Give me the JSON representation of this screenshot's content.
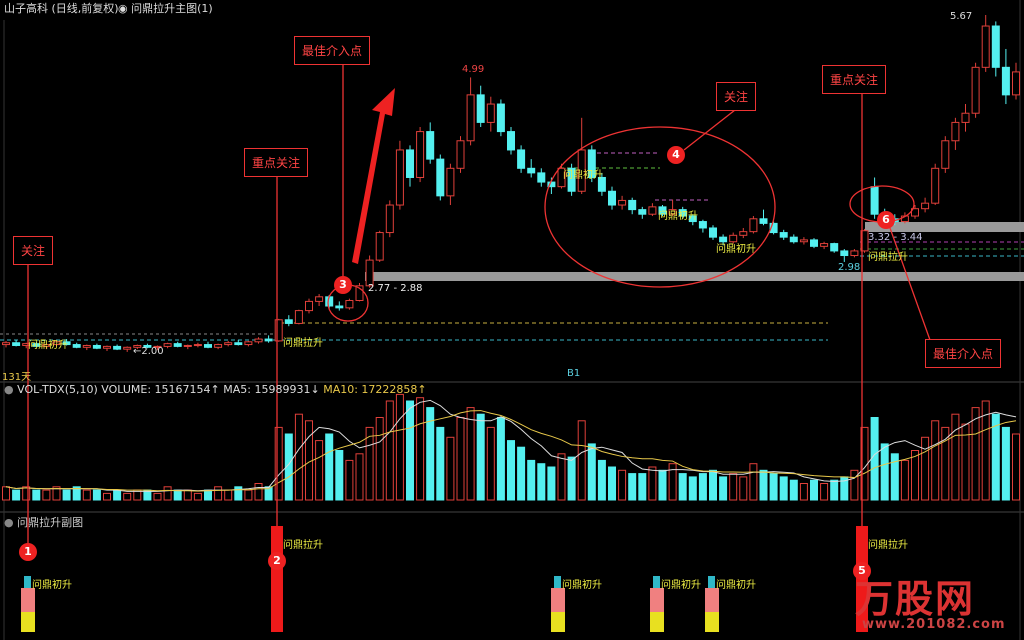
{
  "header": {
    "title": "山子高科 (日线,前复权)",
    "indicator": "问鼎拉升主图(1)"
  },
  "volume_panel": {
    "name": "VOL-TDX(5,10)",
    "volume": "VOLUME: 15167154↑",
    "ma5": "MA5: 15989931↓",
    "ma10": "MA10: 17222858↑"
  },
  "sub_panel": {
    "title": "问鼎拉升副图"
  },
  "labels": {
    "high1": "4.99",
    "high2": "5.67",
    "low1": "2.98",
    "low0": "←2.00",
    "days": "131天",
    "zone1": "2.77 - 2.88",
    "zone2": "3.32 - 3.44",
    "b1": "B1"
  },
  "annotations": {
    "a1": "关注",
    "a2": "重点关注",
    "a3": "最佳介入点",
    "a4": "关注",
    "a5": "重点关注",
    "a6": "最佳介入点",
    "n1": "1",
    "n2": "2",
    "n3": "3",
    "n4": "4",
    "n5": "5",
    "n6": "6"
  },
  "signals": {
    "chu": "问鼎初升",
    "la": "问鼎拉升"
  },
  "logo": {
    "name": "万股网",
    "url": "www.201082.com"
  },
  "colors": {
    "up": "#e0403a",
    "down": "#54f0f0",
    "ma5": "#dddddd",
    "ma10": "#e8c84a",
    "annotation": "#ee3333"
  },
  "chart_data": {
    "type": "candlestick",
    "ylim": [
      2.0,
      5.67
    ],
    "fields": [
      "open",
      "high",
      "low",
      "close",
      "volume_millions"
    ],
    "candles": [
      [
        2.08,
        2.12,
        2.05,
        2.1,
        4
      ],
      [
        2.1,
        2.13,
        2.06,
        2.07,
        3
      ],
      [
        2.07,
        2.1,
        2.04,
        2.09,
        4
      ],
      [
        2.09,
        2.11,
        2.05,
        2.06,
        3
      ],
      [
        2.06,
        2.09,
        2.03,
        2.08,
        3
      ],
      [
        2.08,
        2.12,
        2.06,
        2.11,
        4
      ],
      [
        2.11,
        2.14,
        2.07,
        2.08,
        3
      ],
      [
        2.08,
        2.1,
        2.04,
        2.05,
        4
      ],
      [
        2.05,
        2.08,
        2.02,
        2.07,
        3
      ],
      [
        2.07,
        2.09,
        2.03,
        2.04,
        3
      ],
      [
        2.04,
        2.07,
        2.01,
        2.06,
        2
      ],
      [
        2.06,
        2.08,
        2.02,
        2.03,
        3
      ],
      [
        2.03,
        2.06,
        2.0,
        2.05,
        2
      ],
      [
        2.05,
        2.08,
        2.03,
        2.07,
        3
      ],
      [
        2.07,
        2.09,
        2.04,
        2.05,
        3
      ],
      [
        2.05,
        2.07,
        2.02,
        2.06,
        2
      ],
      [
        2.06,
        2.1,
        2.04,
        2.09,
        4
      ],
      [
        2.09,
        2.11,
        2.05,
        2.06,
        3
      ],
      [
        2.06,
        2.08,
        2.03,
        2.07,
        3
      ],
      [
        2.07,
        2.1,
        2.05,
        2.08,
        2
      ],
      [
        2.08,
        2.11,
        2.04,
        2.05,
        3
      ],
      [
        2.05,
        2.09,
        2.03,
        2.08,
        4
      ],
      [
        2.08,
        2.12,
        2.06,
        2.1,
        3
      ],
      [
        2.1,
        2.13,
        2.07,
        2.08,
        4
      ],
      [
        2.08,
        2.12,
        2.06,
        2.11,
        3
      ],
      [
        2.11,
        2.16,
        2.09,
        2.14,
        5
      ],
      [
        2.14,
        2.18,
        2.1,
        2.12,
        4
      ],
      [
        2.12,
        2.36,
        2.11,
        2.35,
        22
      ],
      [
        2.35,
        2.4,
        2.28,
        2.31,
        20
      ],
      [
        2.31,
        2.46,
        2.3,
        2.45,
        26
      ],
      [
        2.45,
        2.58,
        2.42,
        2.55,
        24
      ],
      [
        2.55,
        2.63,
        2.5,
        2.6,
        18
      ],
      [
        2.6,
        2.62,
        2.47,
        2.5,
        20
      ],
      [
        2.5,
        2.55,
        2.45,
        2.48,
        15
      ],
      [
        2.48,
        2.58,
        2.46,
        2.56,
        12
      ],
      [
        2.56,
        2.75,
        2.55,
        2.72,
        14
      ],
      [
        2.72,
        3.05,
        2.7,
        3.0,
        22
      ],
      [
        3.0,
        3.32,
        2.98,
        3.3,
        25
      ],
      [
        3.3,
        3.65,
        3.25,
        3.6,
        30
      ],
      [
        3.6,
        4.3,
        3.55,
        4.2,
        32
      ],
      [
        4.2,
        4.25,
        3.8,
        3.9,
        30
      ],
      [
        3.9,
        4.45,
        3.85,
        4.4,
        31
      ],
      [
        4.4,
        4.5,
        4.05,
        4.1,
        28
      ],
      [
        4.1,
        4.15,
        3.65,
        3.7,
        22
      ],
      [
        3.7,
        4.05,
        3.6,
        4.0,
        19
      ],
      [
        4.0,
        4.35,
        3.95,
        4.3,
        25
      ],
      [
        4.3,
        4.99,
        4.25,
        4.8,
        28
      ],
      [
        4.8,
        4.9,
        4.45,
        4.5,
        26
      ],
      [
        4.5,
        4.78,
        4.4,
        4.7,
        22
      ],
      [
        4.7,
        4.75,
        4.35,
        4.4,
        25
      ],
      [
        4.4,
        4.45,
        4.15,
        4.2,
        18
      ],
      [
        4.2,
        4.25,
        3.95,
        4.0,
        16
      ],
      [
        4.0,
        4.1,
        3.9,
        3.95,
        12
      ],
      [
        3.95,
        4.0,
        3.8,
        3.85,
        11
      ],
      [
        3.85,
        3.9,
        3.72,
        3.8,
        10
      ],
      [
        3.8,
        4.05,
        3.78,
        4.0,
        14
      ],
      [
        4.0,
        4.05,
        3.7,
        3.75,
        13
      ],
      [
        3.75,
        4.55,
        3.72,
        4.2,
        24
      ],
      [
        4.2,
        4.25,
        3.85,
        3.9,
        17
      ],
      [
        3.9,
        3.95,
        3.7,
        3.75,
        12
      ],
      [
        3.75,
        3.8,
        3.55,
        3.6,
        10
      ],
      [
        3.6,
        3.7,
        3.55,
        3.65,
        9
      ],
      [
        3.65,
        3.68,
        3.5,
        3.55,
        8
      ],
      [
        3.55,
        3.58,
        3.45,
        3.5,
        8
      ],
      [
        3.5,
        3.62,
        3.48,
        3.58,
        10
      ],
      [
        3.58,
        3.6,
        3.48,
        3.5,
        9
      ],
      [
        3.5,
        3.66,
        3.48,
        3.55,
        11
      ],
      [
        3.55,
        3.58,
        3.45,
        3.48,
        8
      ],
      [
        3.48,
        3.5,
        3.38,
        3.42,
        7
      ],
      [
        3.42,
        3.44,
        3.3,
        3.35,
        8
      ],
      [
        3.35,
        3.38,
        3.22,
        3.25,
        9
      ],
      [
        3.25,
        3.28,
        3.16,
        3.2,
        7
      ],
      [
        3.2,
        3.3,
        3.18,
        3.27,
        8
      ],
      [
        3.27,
        3.35,
        3.24,
        3.31,
        7
      ],
      [
        3.31,
        3.48,
        3.29,
        3.45,
        11
      ],
      [
        3.45,
        3.55,
        3.38,
        3.4,
        9
      ],
      [
        3.4,
        3.42,
        3.28,
        3.3,
        8
      ],
      [
        3.3,
        3.33,
        3.22,
        3.25,
        7
      ],
      [
        3.25,
        3.28,
        3.18,
        3.2,
        6
      ],
      [
        3.2,
        3.25,
        3.17,
        3.22,
        5
      ],
      [
        3.22,
        3.24,
        3.13,
        3.15,
        6
      ],
      [
        3.15,
        3.2,
        3.12,
        3.18,
        5
      ],
      [
        3.18,
        3.19,
        3.08,
        3.1,
        6
      ],
      [
        3.1,
        3.12,
        2.98,
        3.05,
        7
      ],
      [
        3.05,
        3.12,
        3.03,
        3.1,
        9
      ],
      [
        3.1,
        3.34,
        3.08,
        3.32,
        22
      ],
      [
        3.8,
        3.9,
        3.45,
        3.5,
        25
      ],
      [
        3.5,
        3.56,
        3.4,
        3.45,
        17
      ],
      [
        3.45,
        3.5,
        3.38,
        3.42,
        14
      ],
      [
        3.42,
        3.52,
        3.4,
        3.48,
        12
      ],
      [
        3.48,
        3.6,
        3.45,
        3.56,
        15
      ],
      [
        3.56,
        3.68,
        3.52,
        3.62,
        19
      ],
      [
        3.62,
        4.05,
        3.6,
        4.0,
        24
      ],
      [
        4.0,
        4.35,
        3.95,
        4.3,
        22
      ],
      [
        4.3,
        4.55,
        4.2,
        4.5,
        26
      ],
      [
        4.5,
        4.7,
        4.4,
        4.6,
        23
      ],
      [
        4.6,
        5.15,
        4.55,
        5.1,
        28
      ],
      [
        5.1,
        5.67,
        5.05,
        5.55,
        30
      ],
      [
        5.55,
        5.6,
        5.0,
        5.1,
        26
      ],
      [
        5.1,
        5.3,
        4.7,
        4.8,
        22
      ],
      [
        4.8,
        5.15,
        4.75,
        5.05,
        20
      ]
    ]
  }
}
